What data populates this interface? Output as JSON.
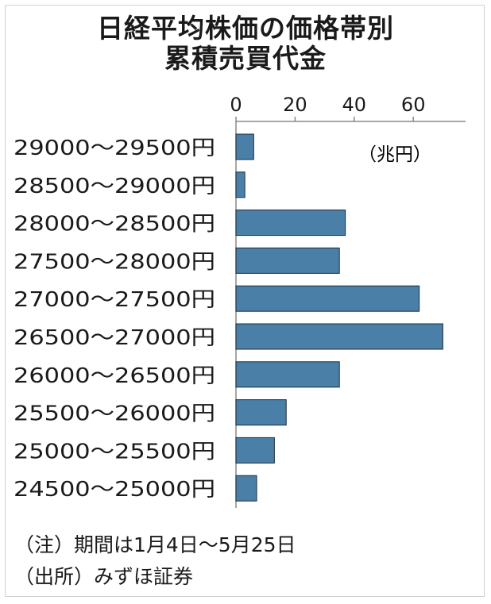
{
  "title_line1": "日経平均株価の価格帯別",
  "title_line2": "累積売買代金",
  "unit_label": "（兆円）",
  "notes": {
    "note": "（注）期間は1月4日～5月25日",
    "source": "（出所）みずほ証券"
  },
  "colors": {
    "bar": "#4a7fa8",
    "bar_edge": "#1c2b38"
  },
  "chart_data": {
    "type": "bar",
    "orientation": "horizontal",
    "categories": [
      "29000～29500円",
      "28500～29000円",
      "28000～28500円",
      "27500～28000円",
      "27000～27500円",
      "26500～27000円",
      "26000～26500円",
      "25500～26000円",
      "25000～25500円",
      "24500～25000円"
    ],
    "values": [
      6,
      3,
      37,
      35,
      62,
      70,
      35,
      17,
      13,
      7
    ],
    "xticks": [
      0,
      20,
      40,
      60
    ],
    "xlim": [
      0,
      77
    ]
  }
}
